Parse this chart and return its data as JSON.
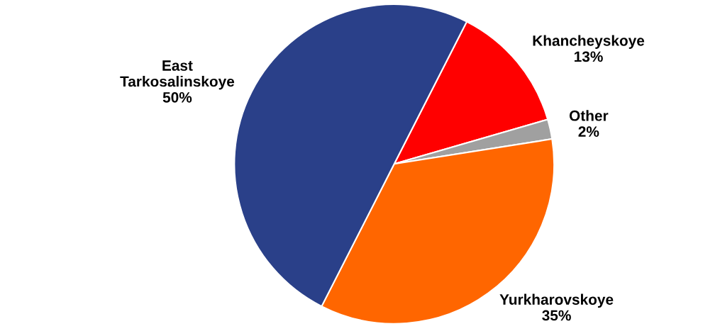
{
  "chart_data": {
    "type": "pie",
    "categories": [
      "Khancheyskoye",
      "Other",
      "Yurkharovskoye",
      "East\nTarkosalinskoye"
    ],
    "values": [
      13,
      2,
      35,
      50
    ],
    "value_labels": [
      "13%",
      "2%",
      "35%",
      "50%"
    ],
    "colors": [
      "#ff0000",
      "#a0a0a0",
      "#ff6600",
      "#2a4089"
    ],
    "legend": false
  }
}
